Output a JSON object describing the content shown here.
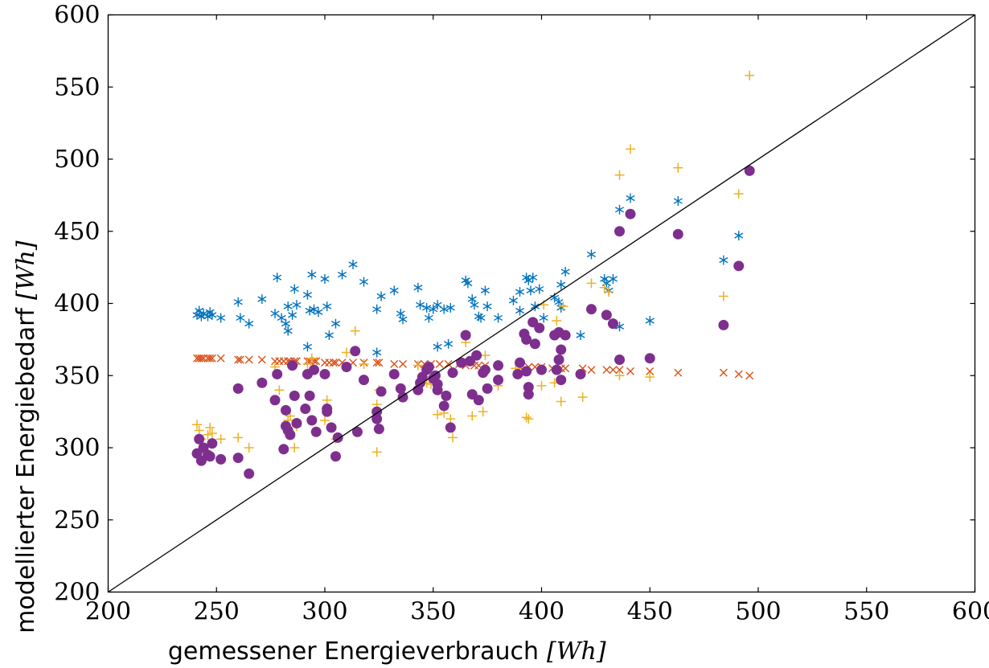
{
  "chart_data": {
    "type": "scatter",
    "title": "",
    "xlabel": "gemessener Energieverbrauch",
    "xunit": "[Wh]",
    "ylabel": "modellierter Energiebedarf",
    "yunit": "[Wh]",
    "xlim": [
      200,
      600
    ],
    "ylim": [
      200,
      600
    ],
    "xticks": [
      200,
      250,
      300,
      350,
      400,
      450,
      500,
      550,
      600
    ],
    "yticks": [
      200,
      250,
      300,
      350,
      400,
      450,
      500,
      550,
      600
    ],
    "grid": false,
    "legend": "none",
    "reference_line": {
      "from": [
        200,
        200
      ],
      "to": [
        600,
        600
      ],
      "color": "#000000"
    },
    "series": [
      {
        "marker": "asterisk",
        "color": "#0072BD",
        "points": [
          [
            241,
            392
          ],
          [
            242,
            395
          ],
          [
            243,
            391
          ],
          [
            244,
            393
          ],
          [
            246,
            391
          ],
          [
            247,
            394
          ],
          [
            248,
            392
          ],
          [
            252,
            390
          ],
          [
            260,
            401
          ],
          [
            261,
            390
          ],
          [
            265,
            386
          ],
          [
            271,
            403
          ],
          [
            277,
            393
          ],
          [
            278,
            418
          ],
          [
            280,
            390
          ],
          [
            282,
            386
          ],
          [
            283,
            398
          ],
          [
            283,
            381
          ],
          [
            285,
            392
          ],
          [
            286,
            410
          ],
          [
            287,
            399
          ],
          [
            292,
            406
          ],
          [
            293,
            395
          ],
          [
            294,
            420
          ],
          [
            295,
            396
          ],
          [
            297,
            394
          ],
          [
            300,
            417
          ],
          [
            301,
            398
          ],
          [
            302,
            378
          ],
          [
            305,
            386
          ],
          [
            308,
            420
          ],
          [
            313,
            427
          ],
          [
            318,
            415
          ],
          [
            324,
            396
          ],
          [
            326,
            405
          ],
          [
            332,
            409
          ],
          [
            335,
            393
          ],
          [
            336,
            389
          ],
          [
            343,
            411
          ],
          [
            344,
            399
          ],
          [
            347,
            397
          ],
          [
            348,
            390
          ],
          [
            350,
            396
          ],
          [
            352,
            399
          ],
          [
            355,
            396
          ],
          [
            358,
            397
          ],
          [
            365,
            416
          ],
          [
            366,
            414
          ],
          [
            368,
            403
          ],
          [
            369,
            399
          ],
          [
            371,
            391
          ],
          [
            372,
            390
          ],
          [
            374,
            409
          ],
          [
            375,
            398
          ],
          [
            380,
            390
          ],
          [
            387,
            402
          ],
          [
            390,
            408
          ],
          [
            390,
            395
          ],
          [
            393,
            418
          ],
          [
            394,
            416
          ],
          [
            395,
            409
          ],
          [
            396,
            418
          ],
          [
            397,
            398
          ],
          [
            399,
            410
          ],
          [
            401,
            390
          ],
          [
            406,
            404
          ],
          [
            408,
            401
          ],
          [
            409,
            397
          ],
          [
            409,
            413
          ],
          [
            411,
            422
          ],
          [
            418,
            378
          ],
          [
            423,
            434
          ],
          [
            429,
            417
          ],
          [
            430,
            414
          ],
          [
            431,
            409
          ],
          [
            433,
            417
          ],
          [
            436,
            384
          ],
          [
            436,
            465
          ],
          [
            441,
            473
          ],
          [
            450,
            388
          ],
          [
            463,
            471
          ],
          [
            484,
            430
          ],
          [
            491,
            447
          ],
          [
            292,
            370
          ],
          [
            324,
            366
          ],
          [
            352,
            370
          ],
          [
            357,
            372
          ]
        ]
      },
      {
        "marker": "cross",
        "color": "#D95319",
        "points": [
          [
            241,
            362
          ],
          [
            242,
            362
          ],
          [
            243,
            362
          ],
          [
            244,
            362
          ],
          [
            246,
            362
          ],
          [
            247,
            362
          ],
          [
            248,
            362
          ],
          [
            252,
            362
          ],
          [
            260,
            361
          ],
          [
            261,
            361
          ],
          [
            265,
            361
          ],
          [
            271,
            361
          ],
          [
            277,
            360
          ],
          [
            279,
            360
          ],
          [
            281,
            360
          ],
          [
            283,
            360
          ],
          [
            284,
            360
          ],
          [
            286,
            360
          ],
          [
            287,
            360
          ],
          [
            292,
            360
          ],
          [
            293,
            360
          ],
          [
            295,
            360
          ],
          [
            296,
            360
          ],
          [
            300,
            359
          ],
          [
            302,
            359
          ],
          [
            304,
            359
          ],
          [
            305,
            359
          ],
          [
            308,
            359
          ],
          [
            313,
            359
          ],
          [
            318,
            359
          ],
          [
            324,
            359
          ],
          [
            325,
            359
          ],
          [
            332,
            358
          ],
          [
            336,
            358
          ],
          [
            343,
            358
          ],
          [
            346,
            358
          ],
          [
            349,
            358
          ],
          [
            353,
            358
          ],
          [
            357,
            358
          ],
          [
            362,
            358
          ],
          [
            365,
            357
          ],
          [
            369,
            357
          ],
          [
            371,
            357
          ],
          [
            374,
            357
          ],
          [
            380,
            357
          ],
          [
            390,
            356
          ],
          [
            394,
            356
          ],
          [
            397,
            356
          ],
          [
            400,
            356
          ],
          [
            405,
            355
          ],
          [
            409,
            355
          ],
          [
            411,
            355
          ],
          [
            419,
            355
          ],
          [
            423,
            354
          ],
          [
            430,
            354
          ],
          [
            433,
            354
          ],
          [
            436,
            354
          ],
          [
            441,
            353
          ],
          [
            450,
            353
          ],
          [
            463,
            352
          ],
          [
            484,
            352
          ],
          [
            491,
            351
          ],
          [
            496,
            350
          ]
        ]
      },
      {
        "marker": "plus",
        "color": "#EDB120",
        "points": [
          [
            241,
            316
          ],
          [
            242,
            312
          ],
          [
            243,
            306
          ],
          [
            246,
            309
          ],
          [
            247,
            314
          ],
          [
            248,
            310
          ],
          [
            252,
            306
          ],
          [
            260,
            307
          ],
          [
            265,
            300
          ],
          [
            277,
            356
          ],
          [
            279,
            340
          ],
          [
            283,
            319
          ],
          [
            284,
            322
          ],
          [
            286,
            300
          ],
          [
            287,
            315
          ],
          [
            292,
            358
          ],
          [
            294,
            362
          ],
          [
            300,
            319
          ],
          [
            301,
            333
          ],
          [
            305,
            306
          ],
          [
            310,
            366
          ],
          [
            314,
            381
          ],
          [
            318,
            358
          ],
          [
            324,
            330
          ],
          [
            324,
            297
          ],
          [
            325,
            340
          ],
          [
            343,
            357
          ],
          [
            347,
            345
          ],
          [
            349,
            344
          ],
          [
            352,
            323
          ],
          [
            355,
            324
          ],
          [
            358,
            320
          ],
          [
            359,
            307
          ],
          [
            365,
            373
          ],
          [
            368,
            322
          ],
          [
            373,
            325
          ],
          [
            374,
            364
          ],
          [
            380,
            343
          ],
          [
            388,
            355
          ],
          [
            390,
            353
          ],
          [
            393,
            321
          ],
          [
            394,
            320
          ],
          [
            400,
            343
          ],
          [
            401,
            399
          ],
          [
            406,
            345
          ],
          [
            407,
            388
          ],
          [
            409,
            332
          ],
          [
            410,
            398
          ],
          [
            419,
            335
          ],
          [
            423,
            414
          ],
          [
            429,
            411
          ],
          [
            431,
            408
          ],
          [
            436,
            489
          ],
          [
            436,
            350
          ],
          [
            441,
            507
          ],
          [
            450,
            349
          ],
          [
            463,
            494
          ],
          [
            484,
            405
          ],
          [
            491,
            476
          ],
          [
            496,
            558
          ]
        ]
      },
      {
        "marker": "circle",
        "color": "#7E2F8E",
        "points": [
          [
            241,
            296
          ],
          [
            242,
            306
          ],
          [
            243,
            291
          ],
          [
            244,
            300
          ],
          [
            246,
            295
          ],
          [
            247,
            294
          ],
          [
            248,
            303
          ],
          [
            252,
            292
          ],
          [
            260,
            341
          ],
          [
            260,
            293
          ],
          [
            265,
            282
          ],
          [
            271,
            345
          ],
          [
            277,
            333
          ],
          [
            278,
            351
          ],
          [
            281,
            299
          ],
          [
            282,
            326
          ],
          [
            282,
            315
          ],
          [
            283,
            312
          ],
          [
            284,
            309
          ],
          [
            285,
            357
          ],
          [
            286,
            336
          ],
          [
            287,
            317
          ],
          [
            291,
            327
          ],
          [
            292,
            351
          ],
          [
            293,
            336
          ],
          [
            294,
            319
          ],
          [
            295,
            354
          ],
          [
            296,
            311
          ],
          [
            300,
            351
          ],
          [
            301,
            325
          ],
          [
            301,
            327
          ],
          [
            303,
            314
          ],
          [
            305,
            294
          ],
          [
            306,
            307
          ],
          [
            310,
            356
          ],
          [
            314,
            367
          ],
          [
            315,
            311
          ],
          [
            318,
            347
          ],
          [
            324,
            325
          ],
          [
            324,
            320
          ],
          [
            325,
            313
          ],
          [
            326,
            339
          ],
          [
            332,
            351
          ],
          [
            335,
            341
          ],
          [
            336,
            335
          ],
          [
            343,
            340
          ],
          [
            344,
            345
          ],
          [
            345,
            349
          ],
          [
            347,
            354
          ],
          [
            348,
            356
          ],
          [
            350,
            348
          ],
          [
            351,
            350
          ],
          [
            352,
            344
          ],
          [
            352,
            340
          ],
          [
            355,
            329
          ],
          [
            356,
            336
          ],
          [
            358,
            314
          ],
          [
            359,
            352
          ],
          [
            363,
            359
          ],
          [
            365,
            378
          ],
          [
            367,
            360
          ],
          [
            368,
            337
          ],
          [
            370,
            364
          ],
          [
            371,
            333
          ],
          [
            373,
            352
          ],
          [
            374,
            354
          ],
          [
            375,
            341
          ],
          [
            380,
            357
          ],
          [
            380,
            347
          ],
          [
            389,
            351
          ],
          [
            390,
            359
          ],
          [
            392,
            379
          ],
          [
            393,
            375
          ],
          [
            393,
            353
          ],
          [
            394,
            342
          ],
          [
            394,
            337
          ],
          [
            396,
            387
          ],
          [
            397,
            372
          ],
          [
            399,
            383
          ],
          [
            400,
            354
          ],
          [
            406,
            378
          ],
          [
            407,
            354
          ],
          [
            408,
            361
          ],
          [
            408,
            380
          ],
          [
            409,
            368
          ],
          [
            409,
            347
          ],
          [
            411,
            378
          ],
          [
            418,
            351
          ],
          [
            423,
            396
          ],
          [
            430,
            392
          ],
          [
            433,
            386
          ],
          [
            436,
            361
          ],
          [
            436,
            450
          ],
          [
            441,
            462
          ],
          [
            450,
            362
          ],
          [
            463,
            448
          ],
          [
            484,
            385
          ],
          [
            491,
            426
          ],
          [
            496,
            492
          ]
        ]
      }
    ]
  }
}
